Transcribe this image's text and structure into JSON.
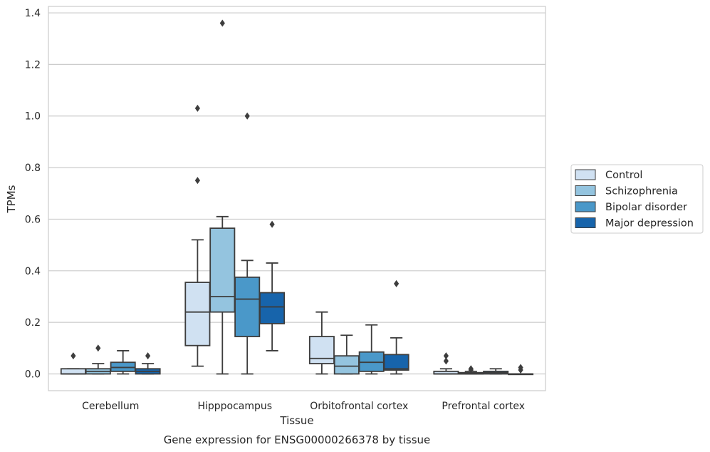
{
  "caption": "Gene expression for ENSG00000266378 by tissue",
  "chart_data": {
    "type": "box",
    "xlabel": "Tissue",
    "ylabel": "TPMs",
    "ylim": [
      -0.065,
      1.425
    ],
    "yticks": [
      "0.0",
      "0.2",
      "0.4",
      "0.6",
      "0.8",
      "1.0",
      "1.2",
      "1.4"
    ],
    "grid": true,
    "legend_position": "right",
    "categories": [
      "Cerebellum",
      "Hipppocampus",
      "Orbitofrontal cortex",
      "Prefrontal cortex"
    ],
    "series": [
      {
        "name": "Control",
        "color": "#d0e1f2",
        "boxes": [
          {
            "whislo": 0.0,
            "q1": 0.0,
            "med": 0.0,
            "q3": 0.02,
            "whishi": 0.02,
            "fliers": [
              0.07
            ]
          },
          {
            "whislo": 0.03,
            "q1": 0.11,
            "med": 0.24,
            "q3": 0.355,
            "whishi": 0.52,
            "fliers": [
              0.75,
              1.03
            ]
          },
          {
            "whislo": 0.0,
            "q1": 0.04,
            "med": 0.06,
            "q3": 0.145,
            "whishi": 0.24,
            "fliers": []
          },
          {
            "whislo": 0.0,
            "q1": 0.0,
            "med": 0.0,
            "q3": 0.01,
            "whishi": 0.02,
            "fliers": [
              0.05,
              0.07
            ]
          }
        ]
      },
      {
        "name": "Schizophrenia",
        "color": "#94c4df",
        "boxes": [
          {
            "whislo": 0.0,
            "q1": 0.0,
            "med": 0.01,
            "q3": 0.02,
            "whishi": 0.04,
            "fliers": [
              0.1
            ]
          },
          {
            "whislo": 0.0,
            "q1": 0.24,
            "med": 0.3,
            "q3": 0.565,
            "whishi": 0.61,
            "fliers": [
              1.36
            ]
          },
          {
            "whislo": 0.0,
            "q1": 0.0,
            "med": 0.03,
            "q3": 0.07,
            "whishi": 0.15,
            "fliers": []
          },
          {
            "whislo": 0.0,
            "q1": 0.0,
            "med": 0.0,
            "q3": 0.005,
            "whishi": 0.01,
            "fliers": [
              0.015,
              0.02
            ]
          }
        ]
      },
      {
        "name": "Bipolar disorder",
        "color": "#4a98c9",
        "boxes": [
          {
            "whislo": 0.0,
            "q1": 0.01,
            "med": 0.025,
            "q3": 0.045,
            "whishi": 0.09,
            "fliers": []
          },
          {
            "whislo": 0.0,
            "q1": 0.145,
            "med": 0.29,
            "q3": 0.375,
            "whishi": 0.44,
            "fliers": [
              1.0
            ]
          },
          {
            "whislo": 0.0,
            "q1": 0.01,
            "med": 0.045,
            "q3": 0.085,
            "whishi": 0.19,
            "fliers": []
          },
          {
            "whislo": 0.0,
            "q1": 0.0,
            "med": 0.005,
            "q3": 0.01,
            "whishi": 0.02,
            "fliers": []
          }
        ]
      },
      {
        "name": "Major depression",
        "color": "#1764ab",
        "boxes": [
          {
            "whislo": 0.0,
            "q1": 0.0,
            "med": 0.01,
            "q3": 0.02,
            "whishi": 0.04,
            "fliers": [
              0.07
            ]
          },
          {
            "whislo": 0.09,
            "q1": 0.195,
            "med": 0.26,
            "q3": 0.315,
            "whishi": 0.43,
            "fliers": [
              0.58
            ]
          },
          {
            "whislo": 0.0,
            "q1": 0.015,
            "med": 0.02,
            "q3": 0.075,
            "whishi": 0.14,
            "fliers": [
              0.35
            ]
          },
          {
            "whislo": 0.0,
            "q1": 0.0,
            "med": 0.0,
            "q3": 0.0,
            "whishi": 0.0,
            "fliers": [
              0.015,
              0.025
            ]
          }
        ]
      }
    ]
  }
}
